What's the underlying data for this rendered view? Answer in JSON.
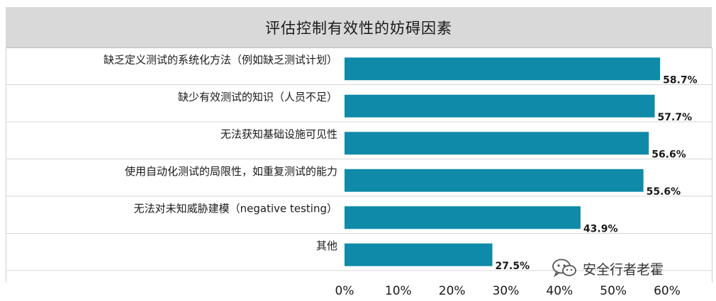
{
  "header": {
    "title": "评估控制有效性的妨碍因素"
  },
  "watermark": {
    "text": "安全行者老霍",
    "icon": "wechat-icon"
  },
  "colors": {
    "bar": "#0f8aa8",
    "grid": "#d6d6d6",
    "title_bg": "#d9d9d9"
  },
  "chart_data": {
    "type": "bar",
    "orientation": "horizontal",
    "title": "评估控制有效性的妨碍因素",
    "categories": [
      "缺乏定义测试的系统化方法（例如缺乏测试计划）",
      "缺少有效测试的知识（人员不足）",
      "无法获知基础设施可见性",
      "使用自动化测试的局限性，如重复测试的能力",
      "无法对未知威胁建模（negative testing）",
      "其他"
    ],
    "values": [
      58.7,
      57.7,
      56.6,
      55.6,
      43.9,
      27.5
    ],
    "value_labels": [
      "58.7%",
      "57.7%",
      "56.6%",
      "55.6%",
      "43.9%",
      "27.5%"
    ],
    "xlim": [
      0,
      60
    ],
    "xticks": [
      0,
      10,
      20,
      30,
      40,
      50,
      60
    ],
    "xtick_labels": [
      "0%",
      "10%",
      "20%",
      "30%",
      "40%",
      "50%",
      "60%"
    ],
    "grid": "horizontal row separators",
    "legend": "none"
  }
}
